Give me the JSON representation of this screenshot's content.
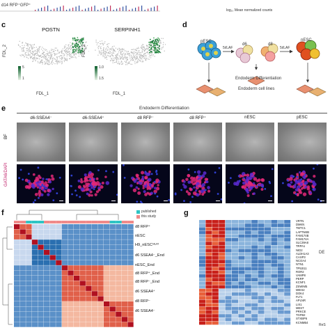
{
  "panel_top": {
    "track_label": "d14 RFP⁺GFP⁺",
    "axis_label": "log₁₀ Mean normalized counts"
  },
  "panel_c": {
    "letter": "c",
    "plots": [
      {
        "title": "POSTN",
        "legend_max": "5",
        "legend_min": "1"
      },
      {
        "title": "SERPINH1",
        "legend_max": "1.0",
        "legend_min": "1.5"
      }
    ],
    "xlabel": "FDL_1",
    "ylabel": "FDL_2"
  },
  "panel_d": {
    "letter": "d",
    "cells": [
      "pESC",
      "d6",
      "d8",
      "nESC"
    ],
    "arrow_labels": [
      "5i/LAF",
      "5i/LAF"
    ],
    "process_label": "Endoderm Differentiation",
    "result_label": "Endoderm cell lines"
  },
  "panel_e": {
    "letter": "e",
    "header": "Endoderm Differentiation",
    "columns": [
      "d6-SSEA4⁻",
      "d6-SSEA4⁺",
      "d8 RFP⁻",
      "d8 RFP⁺",
      "nESC",
      "pESC"
    ],
    "row_labels": [
      "BF",
      "GATA6/DAPI"
    ]
  },
  "panel_f": {
    "letter": "f",
    "legend": [
      {
        "label": "published",
        "color": "#2ec4c4"
      },
      {
        "label": "this study",
        "color": "#f08a8a"
      }
    ],
    "rows": [
      "d8 RFP⁺",
      "nESC",
      "H9_nESC⁵ᴵᴸᴬᶠ",
      "d6 SSEA4⁻_End",
      "nESC_End",
      "d8 RFP⁺_End",
      "d8 RFP⁻_End",
      "d6 SSEA4⁺",
      "d8 RFP⁻",
      "d6 SSEA4⁻"
    ]
  },
  "panel_g": {
    "letter": "g",
    "side_label": "DE",
    "genes": [
      "VRTN",
      "DMKN",
      "TMTC1",
      "LAPTM4B",
      "FAM174B",
      "FAM174A",
      "SLC39A8",
      "TRPA1",
      "NID2",
      "ALDH1A3",
      "CASP3",
      "NCOA4",
      "NTN1",
      "TP53I11",
      "ROR2",
      "VAMP8",
      "PERP",
      "KCNF1",
      "ZSWIM5",
      "MEIS2",
      "DOK4",
      "FLT1",
      "APLNR",
      "LIX1",
      "MEST",
      "PRKCE",
      "TGFB2",
      "STXBP6",
      "KCNMB4"
    ],
    "footer": "ReS"
  }
}
